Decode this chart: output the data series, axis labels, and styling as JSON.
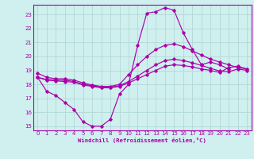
{
  "bg_color": "#cff0ee",
  "grid_color": "#b2d8d8",
  "line_color": "#aa00aa",
  "xlabel": "Windchill (Refroidissement éolien,°C)",
  "xlim": [
    -0.5,
    23.5
  ],
  "ylim": [
    14.7,
    23.7
  ],
  "yticks": [
    15,
    16,
    17,
    18,
    19,
    20,
    21,
    22,
    23
  ],
  "xticks": [
    0,
    1,
    2,
    3,
    4,
    5,
    6,
    7,
    8,
    9,
    10,
    11,
    12,
    13,
    14,
    15,
    16,
    17,
    18,
    19,
    20,
    21,
    22,
    23
  ],
  "hours": [
    0,
    1,
    2,
    3,
    4,
    5,
    6,
    7,
    8,
    9,
    10,
    11,
    12,
    13,
    14,
    15,
    16,
    17,
    18,
    19,
    20,
    21,
    22,
    23
  ],
  "line1": [
    18.5,
    17.5,
    17.2,
    16.7,
    16.2,
    15.3,
    15.0,
    15.0,
    15.5,
    17.3,
    18.0,
    20.8,
    23.1,
    23.2,
    23.5,
    23.3,
    21.7,
    20.5,
    19.4,
    19.6,
    19.4,
    19.1,
    null,
    null
  ],
  "line2": [
    18.8,
    18.5,
    18.4,
    18.4,
    18.3,
    18.1,
    17.95,
    17.85,
    17.85,
    18.0,
    18.7,
    19.4,
    20.0,
    20.5,
    20.8,
    20.9,
    20.7,
    20.4,
    20.1,
    19.8,
    19.6,
    19.4,
    19.2,
    19.1
  ],
  "line3": [
    18.5,
    18.35,
    18.3,
    18.3,
    18.2,
    18.0,
    17.9,
    17.8,
    17.8,
    17.9,
    18.2,
    18.6,
    19.0,
    19.4,
    19.7,
    19.8,
    19.7,
    19.55,
    19.35,
    19.15,
    18.95,
    18.9,
    19.1,
    19.0
  ],
  "line4": [
    18.5,
    18.3,
    18.25,
    18.2,
    18.15,
    17.95,
    17.85,
    17.75,
    17.75,
    17.85,
    18.1,
    18.4,
    18.7,
    19.0,
    19.3,
    19.4,
    19.35,
    19.25,
    19.1,
    19.0,
    18.85,
    19.2,
    19.3,
    19.1
  ]
}
